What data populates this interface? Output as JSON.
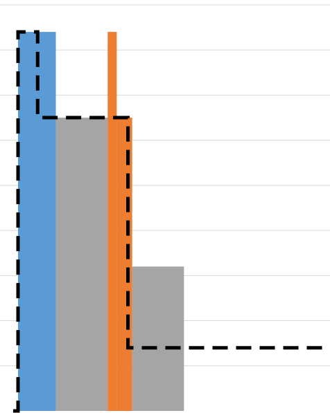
{
  "chart_data": {
    "type": "bar",
    "title": "",
    "xlabel": "",
    "ylabel": "",
    "ylim": [
      0,
      9
    ],
    "grid": true,
    "legend": "none",
    "bars": [
      {
        "series": "blue",
        "x0": 0.0,
        "x1": 0.54,
        "value": 8.4
      },
      {
        "series": "gray",
        "x0": 0.54,
        "x1": 1.28,
        "value": 6.5
      },
      {
        "series": "orange",
        "x0": 1.28,
        "x1": 1.41,
        "value": 8.4
      },
      {
        "series": "orange",
        "x0": 1.41,
        "x1": 1.63,
        "value": 6.5
      },
      {
        "series": "gray",
        "x0": 1.63,
        "x1": 2.37,
        "value": 3.2
      }
    ],
    "step_line": {
      "style": "dashed",
      "x": [
        -0.07,
        0.0,
        0.0,
        0.28,
        0.28,
        1.57,
        1.57,
        4.4
      ],
      "y": [
        0.0,
        0.0,
        8.4,
        8.4,
        6.5,
        6.5,
        1.4,
        1.4
      ]
    },
    "colors": {
      "blue": "#5b9bd5",
      "gray": "#a5a5a5",
      "orange": "#ed7d31",
      "grid": "#d9d9d9",
      "step_line": "#000000"
    }
  }
}
